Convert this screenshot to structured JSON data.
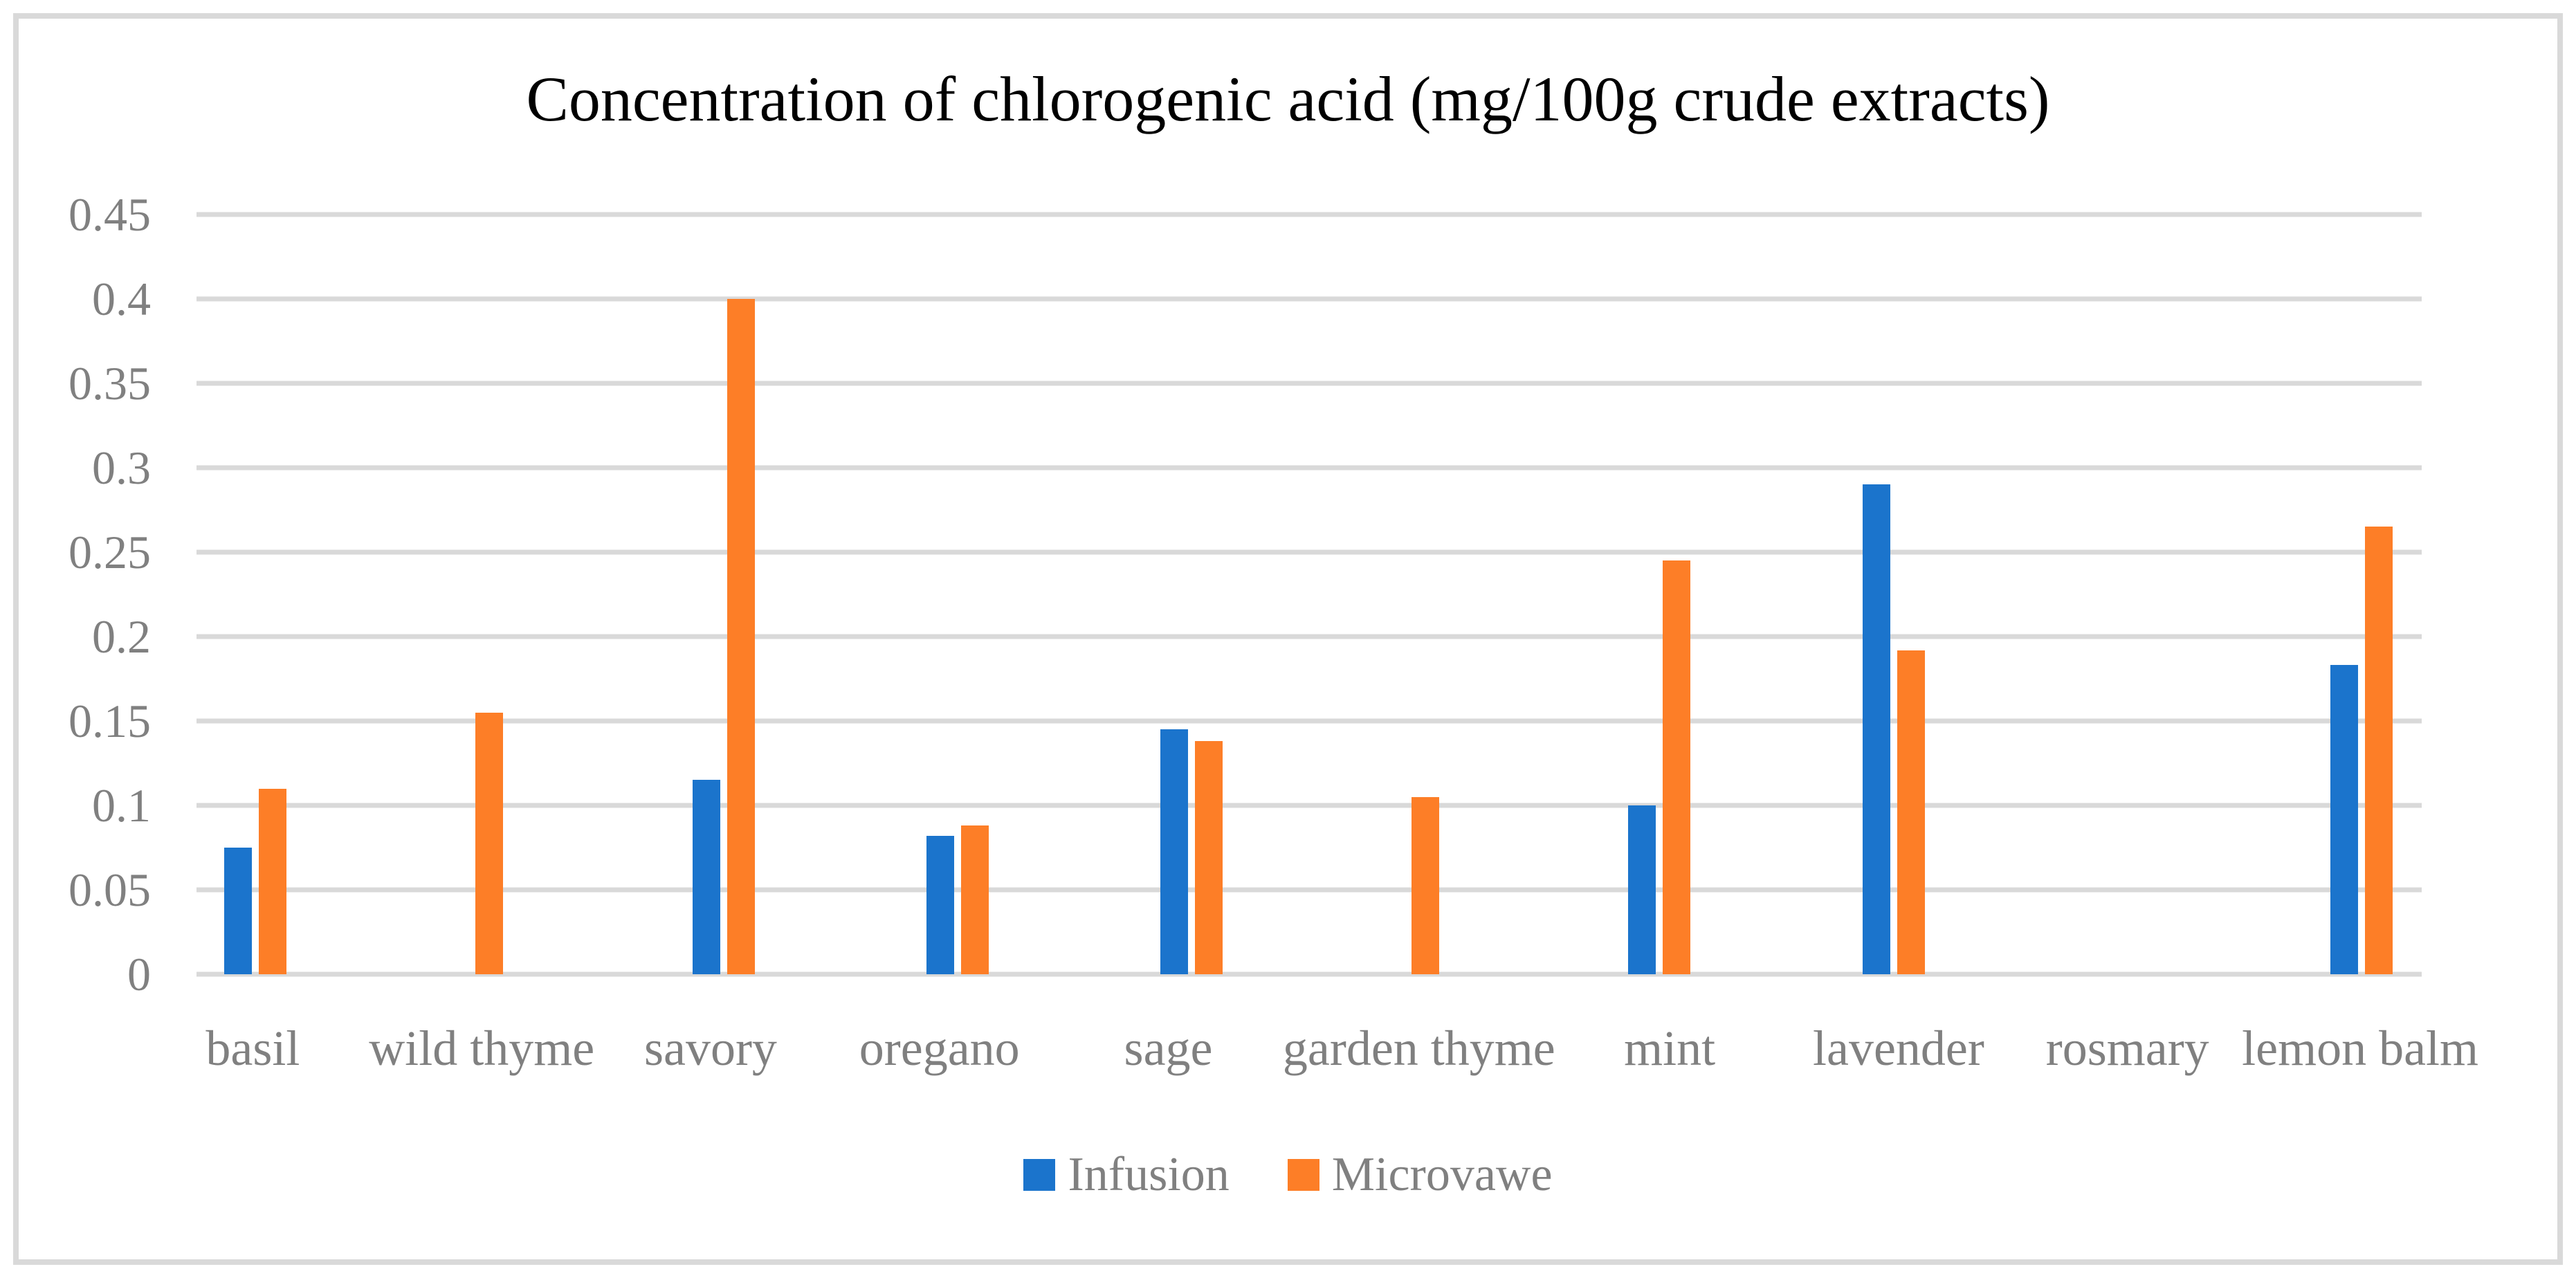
{
  "figure": {
    "border_color": "#D9D9D9",
    "background": "#FFFFFF"
  },
  "chart_data": {
    "type": "bar",
    "title": "Concentration of chlorogenic acid (mg/100g crude extracts)",
    "categories": [
      "basil",
      "wild thyme",
      "savory",
      "oregano",
      "sage",
      "garden thyme",
      "mint",
      "lavender",
      "rosmary",
      "lemon balm"
    ],
    "series": [
      {
        "name": "Infusion",
        "color": "#1B74CC",
        "values": [
          0.075,
          0,
          0.115,
          0.082,
          0.145,
          0,
          0.1,
          0.29,
          0,
          0.183
        ]
      },
      {
        "name": "Microvawe",
        "color": "#FD7E27",
        "values": [
          0.11,
          0.155,
          0.4,
          0.088,
          0.138,
          0.105,
          0.245,
          0.192,
          0,
          0.265
        ]
      }
    ],
    "xlabel": "",
    "ylabel": "",
    "ylim": [
      0,
      0.45
    ],
    "ytick_labels": [
      "0.45",
      "0.4",
      "0.35",
      "0.3",
      "0.25",
      "0.2",
      "0.15",
      "0.1",
      "0.05",
      "0"
    ],
    "ytick_values": [
      0.45,
      0.4,
      0.35,
      0.3,
      0.25,
      0.2,
      0.15,
      0.1,
      0.05,
      0
    ],
    "grid": true,
    "legend_position": "bottom",
    "gridline_color": "#D9D9D9",
    "tick_text_color": "#808080",
    "title_color": "#000000"
  }
}
